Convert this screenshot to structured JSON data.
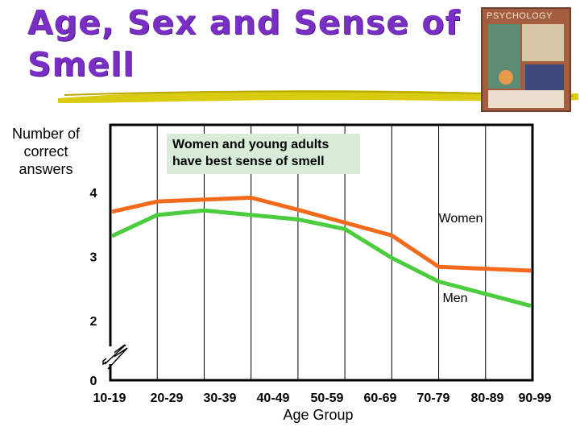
{
  "slide": {
    "title": "Age, Sex and Sense of Smell",
    "book_cover_text": "PSYCHOLOGY",
    "annotation": "Women and young adults have best sense of smell"
  },
  "colors": {
    "title": "#7a2fc4",
    "women_line": "#f26a1b",
    "men_line": "#4ccc3f",
    "annotation_bg": "#d9ecd9",
    "brush": "#d9cc10"
  },
  "chart_data": {
    "type": "line",
    "title": "",
    "xlabel": "Age Group",
    "ylabel": "Number of correct answers",
    "categories": [
      "10-19",
      "20-29",
      "30-39",
      "40-49",
      "50-59",
      "60-69",
      "70-79",
      "80-89",
      "90-99"
    ],
    "yticks": [
      0,
      2,
      3,
      4
    ],
    "y_axis_break": true,
    "ylim": [
      0,
      4.3
    ],
    "grid": true,
    "series": [
      {
        "name": "Women",
        "values": [
          3.7,
          3.86,
          3.89,
          3.92,
          3.73,
          3.53,
          3.33,
          2.84,
          2.78
        ]
      },
      {
        "name": "Men",
        "values": [
          3.32,
          3.65,
          3.72,
          3.65,
          3.58,
          3.43,
          2.98,
          2.61,
          2.23
        ]
      }
    ]
  }
}
